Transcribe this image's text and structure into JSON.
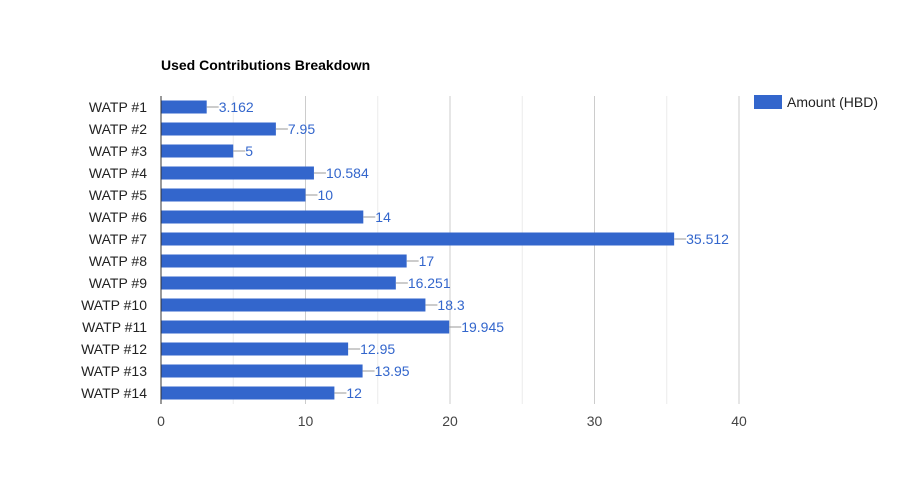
{
  "chart_data": {
    "type": "bar",
    "orientation": "horizontal",
    "title": "Used Contributions Breakdown",
    "xlabel": "",
    "ylabel": "",
    "categories": [
      "WATP #1",
      "WATP #2",
      "WATP #3",
      "WATP #4",
      "WATP #5",
      "WATP #6",
      "WATP #7",
      "WATP #8",
      "WATP #9",
      "WATP #10",
      "WATP #11",
      "WATP #12",
      "WATP #13",
      "WATP #14"
    ],
    "series": [
      {
        "name": "Amount (HBD)",
        "color": "#3366cc",
        "values": [
          3.162,
          7.95,
          5,
          10.584,
          10,
          14,
          35.512,
          17,
          16.251,
          18.3,
          19.945,
          12.95,
          13.95,
          12
        ],
        "labels": [
          "3.162",
          "7.95",
          "5",
          "10.584",
          "10",
          "14",
          "35.512",
          "17",
          "16.251",
          "18.3",
          "19.945",
          "12.95",
          "13.95",
          "12"
        ]
      }
    ],
    "xlim": [
      0,
      40
    ],
    "x_ticks": [
      0,
      10,
      20,
      30,
      40
    ],
    "x_tick_labels": [
      "0",
      "10",
      "20",
      "30",
      "40"
    ],
    "grid": true,
    "legend": "right"
  }
}
